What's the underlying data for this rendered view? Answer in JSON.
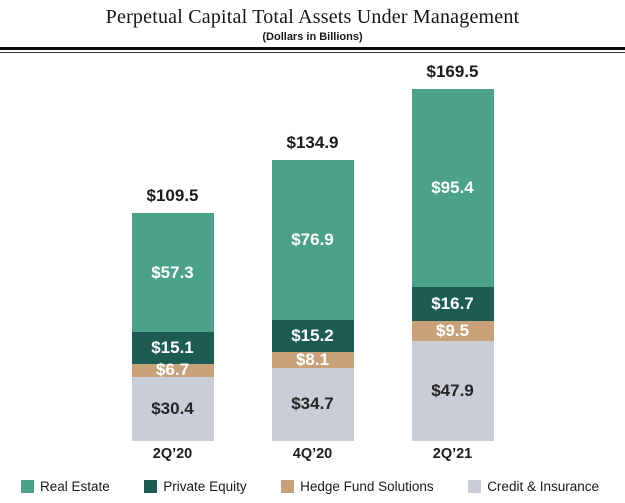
{
  "header": {
    "title": "Perpetual Capital Total Assets Under Management",
    "subtitle": "(Dollars in Billions)"
  },
  "chart_data": {
    "type": "bar",
    "stacked": true,
    "title": "Perpetual Capital Total Assets Under Management",
    "subtitle": "(Dollars in Billions)",
    "categories": [
      "2Q’20",
      "4Q’20",
      "2Q’21"
    ],
    "totals": [
      109.5,
      134.9,
      169.5
    ],
    "value_prefix": "$",
    "legend_position": "bottom",
    "grid": false,
    "axis_lines": "none",
    "series": [
      {
        "name": "Real Estate",
        "color": "#4ca189",
        "text_color": "#ffffff",
        "values": [
          57.3,
          76.9,
          95.4
        ]
      },
      {
        "name": "Private Equity",
        "color": "#1d5c52",
        "text_color": "#ffffff",
        "values": [
          15.1,
          15.2,
          16.7
        ]
      },
      {
        "name": "Hedge Fund Solutions",
        "color": "#c9a179",
        "text_color": "#ffffff",
        "values": [
          6.7,
          8.1,
          9.5
        ]
      },
      {
        "name": "Credit & Insurance",
        "color": "#c9cdd7",
        "text_color": "#262626",
        "values": [
          30.4,
          34.7,
          47.9
        ]
      }
    ]
  }
}
